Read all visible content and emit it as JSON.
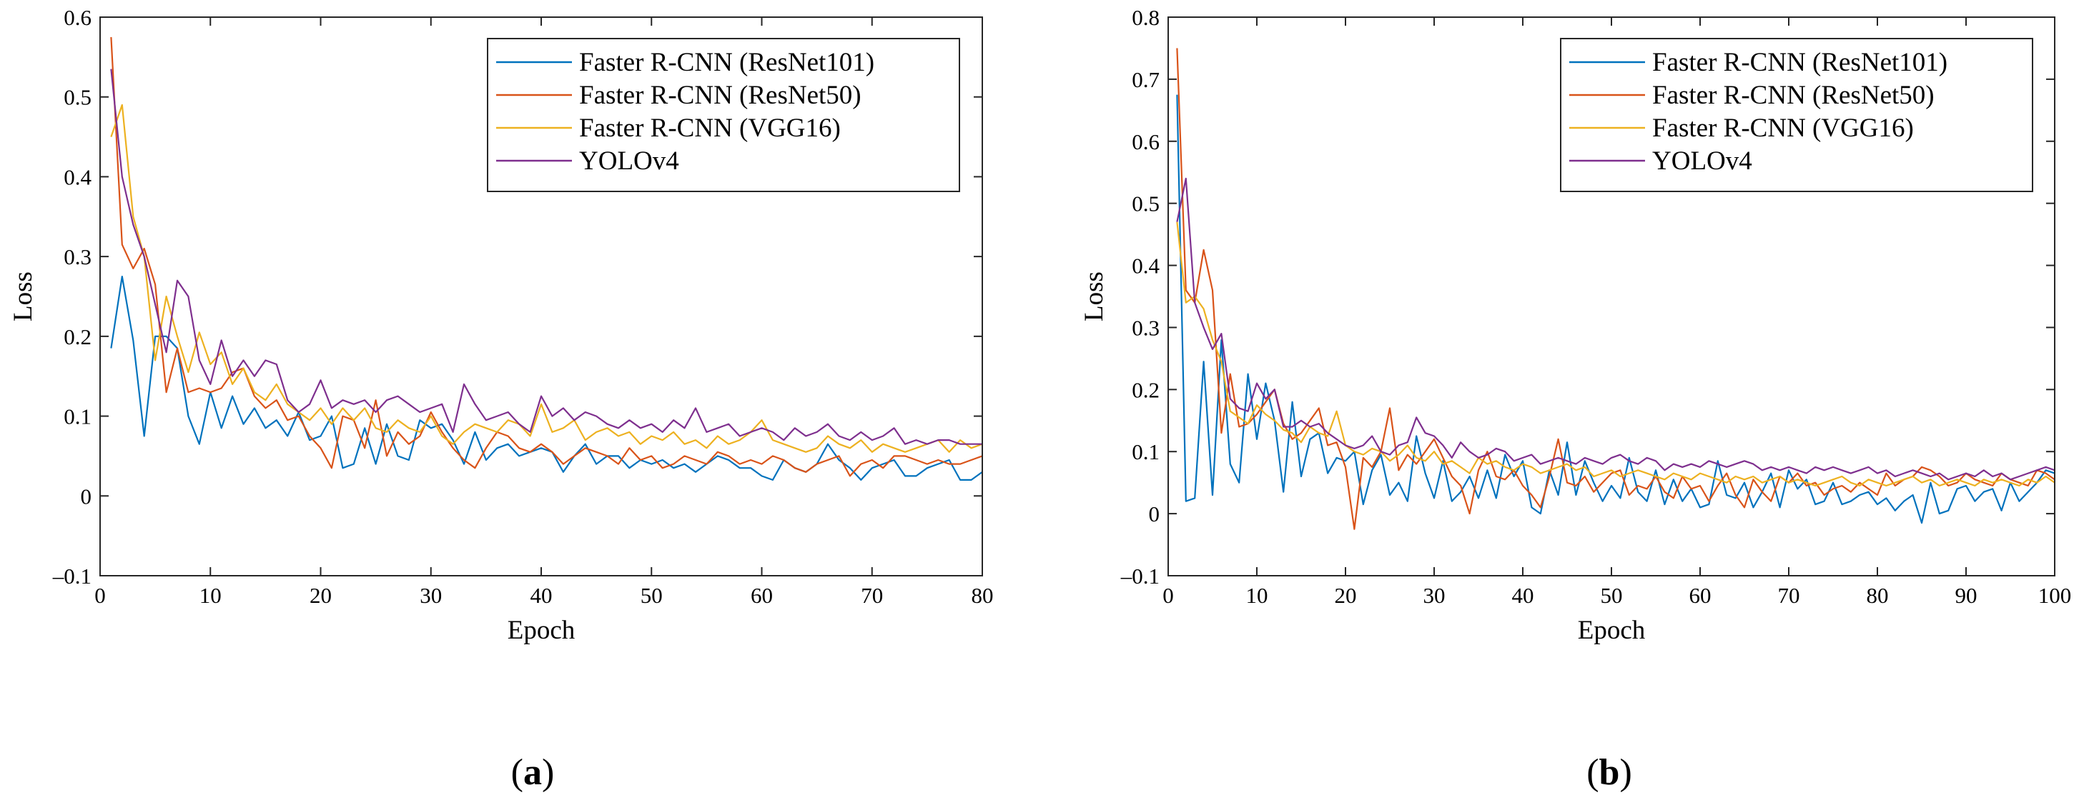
{
  "chart_data": [
    {
      "type": "line",
      "panel": "a",
      "caption": {
        "open": "(",
        "letter": "a",
        "close": ")"
      },
      "xlabel": "Epoch",
      "ylabel": "Loss",
      "xlim": [
        0,
        80
      ],
      "ylim": [
        -0.1,
        0.6
      ],
      "xticks": [
        0,
        10,
        20,
        30,
        40,
        50,
        60,
        70,
        80
      ],
      "yticks": [
        -0.1,
        0,
        0.1,
        0.2,
        0.3,
        0.4,
        0.5,
        0.6
      ],
      "ytick_labels": [
        "–0.1",
        "0",
        "0.1",
        "0.2",
        "0.3",
        "0.4",
        "0.5",
        "0.6"
      ],
      "grid": false,
      "legend_position": "top-right",
      "series": [
        {
          "name": "Faster R-CNN (ResNet101)",
          "color": "#0072BD",
          "x_start": 1,
          "values": [
            0.185,
            0.275,
            0.195,
            0.075,
            0.2,
            0.2,
            0.185,
            0.1,
            0.065,
            0.13,
            0.085,
            0.125,
            0.09,
            0.11,
            0.085,
            0.095,
            0.075,
            0.105,
            0.07,
            0.075,
            0.1,
            0.035,
            0.04,
            0.085,
            0.04,
            0.09,
            0.05,
            0.045,
            0.095,
            0.085,
            0.09,
            0.07,
            0.04,
            0.08,
            0.045,
            0.06,
            0.065,
            0.05,
            0.055,
            0.06,
            0.055,
            0.03,
            0.05,
            0.065,
            0.04,
            0.05,
            0.05,
            0.035,
            0.045,
            0.04,
            0.045,
            0.035,
            0.04,
            0.03,
            0.04,
            0.05,
            0.045,
            0.035,
            0.035,
            0.025,
            0.02,
            0.045,
            0.035,
            0.03,
            0.04,
            0.065,
            0.045,
            0.035,
            0.02,
            0.035,
            0.04,
            0.045,
            0.025,
            0.025,
            0.035,
            0.04,
            0.045,
            0.02,
            0.02,
            0.03
          ]
        },
        {
          "name": "Faster R-CNN (ResNet50)",
          "color": "#D95319",
          "x_start": 1,
          "values": [
            0.575,
            0.315,
            0.285,
            0.31,
            0.265,
            0.13,
            0.185,
            0.13,
            0.135,
            0.13,
            0.135,
            0.155,
            0.16,
            0.125,
            0.11,
            0.12,
            0.095,
            0.1,
            0.075,
            0.06,
            0.035,
            0.1,
            0.095,
            0.06,
            0.12,
            0.05,
            0.08,
            0.065,
            0.075,
            0.105,
            0.08,
            0.06,
            0.045,
            0.035,
            0.06,
            0.08,
            0.075,
            0.06,
            0.055,
            0.065,
            0.055,
            0.04,
            0.05,
            0.06,
            0.055,
            0.05,
            0.04,
            0.06,
            0.045,
            0.05,
            0.035,
            0.04,
            0.05,
            0.045,
            0.04,
            0.055,
            0.05,
            0.04,
            0.045,
            0.04,
            0.05,
            0.045,
            0.035,
            0.03,
            0.04,
            0.045,
            0.05,
            0.025,
            0.04,
            0.045,
            0.035,
            0.05,
            0.05,
            0.045,
            0.04,
            0.045,
            0.04,
            0.04,
            0.045,
            0.05
          ]
        },
        {
          "name": "Faster R-CNN (VGG16)",
          "color": "#EDB120",
          "x_start": 1,
          "values": [
            0.45,
            0.49,
            0.35,
            0.3,
            0.17,
            0.25,
            0.2,
            0.155,
            0.205,
            0.165,
            0.18,
            0.14,
            0.16,
            0.13,
            0.12,
            0.14,
            0.115,
            0.105,
            0.095,
            0.11,
            0.09,
            0.11,
            0.095,
            0.11,
            0.085,
            0.08,
            0.095,
            0.085,
            0.08,
            0.1,
            0.075,
            0.065,
            0.08,
            0.09,
            0.085,
            0.08,
            0.095,
            0.09,
            0.075,
            0.115,
            0.08,
            0.085,
            0.095,
            0.07,
            0.08,
            0.085,
            0.075,
            0.08,
            0.065,
            0.075,
            0.07,
            0.08,
            0.065,
            0.07,
            0.06,
            0.075,
            0.065,
            0.07,
            0.08,
            0.095,
            0.07,
            0.065,
            0.06,
            0.055,
            0.06,
            0.075,
            0.065,
            0.06,
            0.07,
            0.055,
            0.065,
            0.06,
            0.055,
            0.06,
            0.065,
            0.07,
            0.055,
            0.07,
            0.06,
            0.065
          ]
        },
        {
          "name": "YOLOv4",
          "color": "#7E2F8E",
          "x_start": 1,
          "values": [
            0.535,
            0.4,
            0.34,
            0.3,
            0.24,
            0.18,
            0.27,
            0.25,
            0.17,
            0.14,
            0.195,
            0.15,
            0.17,
            0.15,
            0.17,
            0.165,
            0.12,
            0.105,
            0.115,
            0.145,
            0.11,
            0.12,
            0.115,
            0.12,
            0.105,
            0.12,
            0.125,
            0.115,
            0.105,
            0.11,
            0.115,
            0.08,
            0.14,
            0.115,
            0.095,
            0.1,
            0.105,
            0.09,
            0.08,
            0.125,
            0.1,
            0.11,
            0.095,
            0.105,
            0.1,
            0.09,
            0.085,
            0.095,
            0.085,
            0.09,
            0.08,
            0.095,
            0.085,
            0.11,
            0.08,
            0.085,
            0.09,
            0.075,
            0.08,
            0.085,
            0.08,
            0.07,
            0.085,
            0.075,
            0.08,
            0.09,
            0.075,
            0.07,
            0.08,
            0.07,
            0.075,
            0.085,
            0.065,
            0.07,
            0.065,
            0.07,
            0.07,
            0.065,
            0.065,
            0.065
          ]
        }
      ]
    },
    {
      "type": "line",
      "panel": "b",
      "caption": {
        "open": "(",
        "letter": "b",
        "close": ")"
      },
      "xlabel": "Epoch",
      "ylabel": "Loss",
      "xlim": [
        0,
        100
      ],
      "ylim": [
        -0.1,
        0.8
      ],
      "xticks": [
        0,
        10,
        20,
        30,
        40,
        50,
        60,
        70,
        80,
        90,
        100
      ],
      "yticks": [
        -0.1,
        0,
        0.1,
        0.2,
        0.3,
        0.4,
        0.5,
        0.6,
        0.7,
        0.8
      ],
      "ytick_labels": [
        "–0.1",
        "0",
        "0.1",
        "0.2",
        "0.3",
        "0.4",
        "0.5",
        "0.6",
        "0.7",
        "0.8"
      ],
      "grid": false,
      "legend_position": "top-right",
      "series": [
        {
          "name": "Faster R-CNN (ResNet101)",
          "color": "#0072BD",
          "x_start": 1,
          "values": [
            0.675,
            0.02,
            0.025,
            0.245,
            0.03,
            0.28,
            0.08,
            0.05,
            0.225,
            0.12,
            0.21,
            0.15,
            0.035,
            0.18,
            0.06,
            0.12,
            0.13,
            0.065,
            0.09,
            0.085,
            0.1,
            0.015,
            0.07,
            0.095,
            0.03,
            0.05,
            0.02,
            0.125,
            0.065,
            0.025,
            0.085,
            0.02,
            0.035,
            0.06,
            0.025,
            0.07,
            0.025,
            0.095,
            0.06,
            0.085,
            0.01,
            0.0,
            0.07,
            0.03,
            0.115,
            0.03,
            0.085,
            0.05,
            0.02,
            0.045,
            0.025,
            0.09,
            0.035,
            0.02,
            0.07,
            0.015,
            0.055,
            0.02,
            0.04,
            0.01,
            0.015,
            0.085,
            0.03,
            0.025,
            0.05,
            0.01,
            0.035,
            0.065,
            0.01,
            0.07,
            0.04,
            0.055,
            0.015,
            0.02,
            0.05,
            0.015,
            0.02,
            0.03,
            0.035,
            0.015,
            0.025,
            0.005,
            0.02,
            0.03,
            -0.015,
            0.05,
            0.0,
            0.005,
            0.04,
            0.045,
            0.02,
            0.035,
            0.04,
            0.005,
            0.05,
            0.02,
            0.035,
            0.05,
            0.07,
            0.065
          ]
        },
        {
          "name": "Faster R-CNN (ResNet50)",
          "color": "#D95319",
          "x_start": 1,
          "values": [
            0.75,
            0.36,
            0.34,
            0.425,
            0.36,
            0.13,
            0.225,
            0.14,
            0.145,
            0.16,
            0.18,
            0.2,
            0.145,
            0.12,
            0.13,
            0.15,
            0.17,
            0.11,
            0.115,
            0.075,
            -0.025,
            0.09,
            0.075,
            0.1,
            0.17,
            0.07,
            0.095,
            0.08,
            0.1,
            0.12,
            0.09,
            0.06,
            0.045,
            0.0,
            0.07,
            0.1,
            0.06,
            0.055,
            0.07,
            0.045,
            0.03,
            0.01,
            0.06,
            0.12,
            0.05,
            0.045,
            0.06,
            0.035,
            0.05,
            0.065,
            0.07,
            0.03,
            0.045,
            0.04,
            0.06,
            0.035,
            0.025,
            0.06,
            0.04,
            0.045,
            0.02,
            0.045,
            0.065,
            0.03,
            0.01,
            0.055,
            0.035,
            0.02,
            0.06,
            0.05,
            0.065,
            0.045,
            0.05,
            0.03,
            0.04,
            0.045,
            0.035,
            0.05,
            0.04,
            0.03,
            0.065,
            0.045,
            0.055,
            0.06,
            0.075,
            0.07,
            0.06,
            0.045,
            0.05,
            0.065,
            0.055,
            0.05,
            0.045,
            0.065,
            0.055,
            0.05,
            0.045,
            0.07,
            0.065,
            0.055
          ]
        },
        {
          "name": "Faster R-CNN (VGG16)",
          "color": "#EDB120",
          "x_start": 1,
          "values": [
            0.47,
            0.34,
            0.35,
            0.33,
            0.28,
            0.245,
            0.165,
            0.155,
            0.145,
            0.175,
            0.16,
            0.15,
            0.135,
            0.13,
            0.115,
            0.14,
            0.13,
            0.125,
            0.165,
            0.11,
            0.1,
            0.095,
            0.105,
            0.1,
            0.085,
            0.095,
            0.11,
            0.09,
            0.085,
            0.1,
            0.08,
            0.085,
            0.075,
            0.065,
            0.09,
            0.08,
            0.085,
            0.075,
            0.07,
            0.08,
            0.075,
            0.065,
            0.07,
            0.075,
            0.08,
            0.07,
            0.075,
            0.06,
            0.065,
            0.07,
            0.06,
            0.065,
            0.07,
            0.065,
            0.06,
            0.055,
            0.065,
            0.06,
            0.055,
            0.065,
            0.06,
            0.055,
            0.05,
            0.06,
            0.055,
            0.06,
            0.05,
            0.055,
            0.06,
            0.05,
            0.055,
            0.05,
            0.045,
            0.05,
            0.055,
            0.06,
            0.05,
            0.045,
            0.055,
            0.05,
            0.045,
            0.05,
            0.055,
            0.06,
            0.05,
            0.055,
            0.045,
            0.05,
            0.055,
            0.05,
            0.045,
            0.055,
            0.05,
            0.055,
            0.05,
            0.045,
            0.055,
            0.05,
            0.06,
            0.05
          ]
        },
        {
          "name": "YOLOv4",
          "color": "#7E2F8E",
          "x_start": 1,
          "values": [
            0.47,
            0.54,
            0.34,
            0.3,
            0.265,
            0.29,
            0.185,
            0.17,
            0.165,
            0.21,
            0.185,
            0.2,
            0.14,
            0.14,
            0.15,
            0.14,
            0.145,
            0.13,
            0.12,
            0.11,
            0.105,
            0.11,
            0.125,
            0.1,
            0.095,
            0.11,
            0.115,
            0.155,
            0.13,
            0.125,
            0.11,
            0.09,
            0.115,
            0.1,
            0.09,
            0.095,
            0.105,
            0.1,
            0.085,
            0.09,
            0.095,
            0.08,
            0.085,
            0.09,
            0.085,
            0.08,
            0.09,
            0.085,
            0.08,
            0.09,
            0.095,
            0.085,
            0.08,
            0.09,
            0.085,
            0.07,
            0.08,
            0.075,
            0.08,
            0.075,
            0.085,
            0.08,
            0.075,
            0.08,
            0.085,
            0.08,
            0.07,
            0.075,
            0.07,
            0.075,
            0.07,
            0.065,
            0.075,
            0.07,
            0.075,
            0.07,
            0.065,
            0.07,
            0.075,
            0.065,
            0.07,
            0.06,
            0.065,
            0.07,
            0.065,
            0.06,
            0.065,
            0.055,
            0.06,
            0.065,
            0.06,
            0.07,
            0.06,
            0.065,
            0.055,
            0.06,
            0.065,
            0.07,
            0.075,
            0.07
          ]
        }
      ]
    }
  ]
}
